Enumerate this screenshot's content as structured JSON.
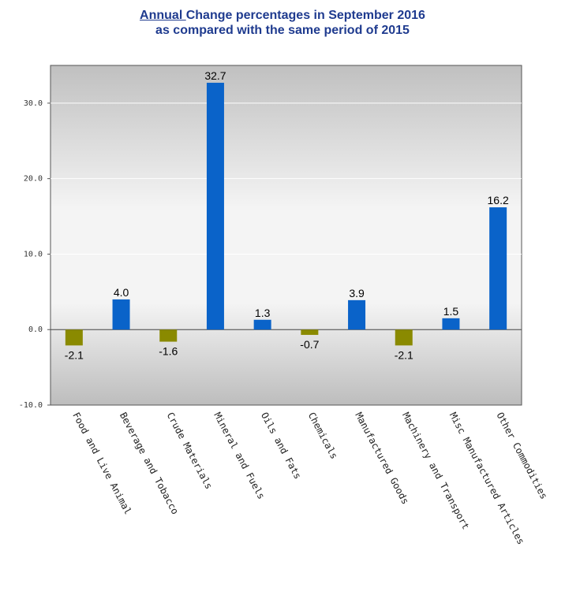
{
  "title": {
    "line1_underlined": "Annual ",
    "line1_rest": "Change percentages in September 2016",
    "line2": "as compared with the same period of  2015"
  },
  "colors": {
    "positive": "#0a63c9",
    "negative": "#8a8a00",
    "plot_top": "#c0c0c0",
    "plot_mid": "#f4f4f4",
    "plot_bottom": "#bdbdbd",
    "title": "#1f3b8f"
  },
  "chart_data": {
    "type": "bar",
    "title": "Annual Change percentages in September 2016 as compared with the same period of  2015",
    "categories": [
      "Food and Live Animal",
      "Beverage and Tobacco",
      "Crude Materials",
      "Mineral and Fuels",
      "Oils and Fats",
      "Chemicals",
      "Manufactured Goods",
      "Machinery and Transport",
      "Misc Manufactured Articles",
      "Other Commodities"
    ],
    "values": [
      -2.1,
      4.0,
      -1.6,
      32.7,
      1.3,
      -0.7,
      3.9,
      -2.1,
      1.5,
      16.2
    ],
    "value_labels": [
      "-2.1",
      "4.0",
      "-1.6",
      "32.7",
      "1.3",
      "-0.7",
      "3.9",
      "-2.1",
      "1.5",
      "16.2"
    ],
    "ylim": [
      -10,
      35
    ],
    "yticks": [
      -10,
      0,
      10,
      20,
      30
    ],
    "ytick_labels": [
      "-10.0",
      "0.0",
      "10.0",
      "20.0",
      "30.0"
    ],
    "xlabel": "",
    "ylabel": "",
    "grid": true,
    "legend": "none"
  }
}
